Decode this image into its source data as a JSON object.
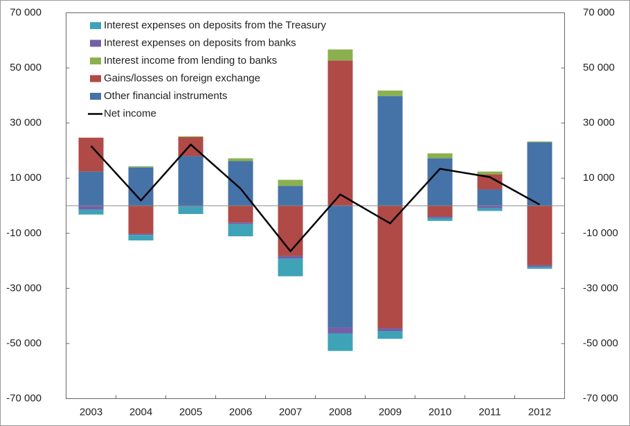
{
  "chart_data": {
    "type": "bar",
    "stacked": true,
    "categories": [
      "2003",
      "2004",
      "2005",
      "2006",
      "2007",
      "2008",
      "2009",
      "2010",
      "2011",
      "2012"
    ],
    "series": [
      {
        "name": "Interest expenses on deposits from the Treasury",
        "color": "#3fa3b8",
        "values": [
          -1800,
          -2000,
          -2700,
          -4400,
          -6400,
          -6300,
          -2800,
          -1000,
          -1000,
          -700
        ]
      },
      {
        "name": "Interest expenses on deposits from banks",
        "color": "#7360a8",
        "values": [
          -1400,
          -400,
          -300,
          -600,
          -1000,
          -2300,
          -1000,
          -600,
          -900,
          -600
        ]
      },
      {
        "name": "Interest income from lending to banks",
        "color": "#8bb04f",
        "values": [
          0,
          400,
          300,
          1000,
          2200,
          4000,
          2000,
          1800,
          1000,
          300
        ]
      },
      {
        "name": "Gains/losses on foreign exchange",
        "color": "#b04a47",
        "values": [
          12300,
          -10200,
          6900,
          -6100,
          -18200,
          52700,
          -44500,
          -3900,
          5500,
          -21600
        ]
      },
      {
        "name": "Other financial instruments",
        "color": "#4572a7",
        "values": [
          12400,
          13900,
          18000,
          16200,
          7200,
          -44100,
          39800,
          17200,
          5900,
          23000
        ]
      },
      {
        "name": "Net income",
        "color": "#000000",
        "type": "line",
        "values": [
          21700,
          1900,
          22200,
          6200,
          -16500,
          4100,
          -6400,
          13400,
          10400,
          400
        ]
      }
    ],
    "ylim": [
      -70000,
      70000
    ],
    "yticks": [
      {
        "value": -70000,
        "label": "-70 000"
      },
      {
        "value": -50000,
        "label": "-50 000"
      },
      {
        "value": -30000,
        "label": "-30 000"
      },
      {
        "value": -10000,
        "label": "-10 000"
      },
      {
        "value": 10000,
        "label": "10 000"
      },
      {
        "value": 30000,
        "label": "30 000"
      },
      {
        "value": 50000,
        "label": "50 000"
      },
      {
        "value": 70000,
        "label": "70 000"
      }
    ],
    "y2lim": [
      -70000,
      70000
    ],
    "y2ticks": [
      {
        "value": -70000,
        "label": "-70 000"
      },
      {
        "value": -50000,
        "label": "-50 000"
      },
      {
        "value": -30000,
        "label": "-30 000"
      },
      {
        "value": -10000,
        "label": "-10 000"
      },
      {
        "value": 10000,
        "label": "10 000"
      },
      {
        "value": 30000,
        "label": "30 000"
      },
      {
        "value": 50000,
        "label": "50 000"
      },
      {
        "value": 70000,
        "label": "70 000"
      }
    ],
    "legend": "upper left"
  }
}
